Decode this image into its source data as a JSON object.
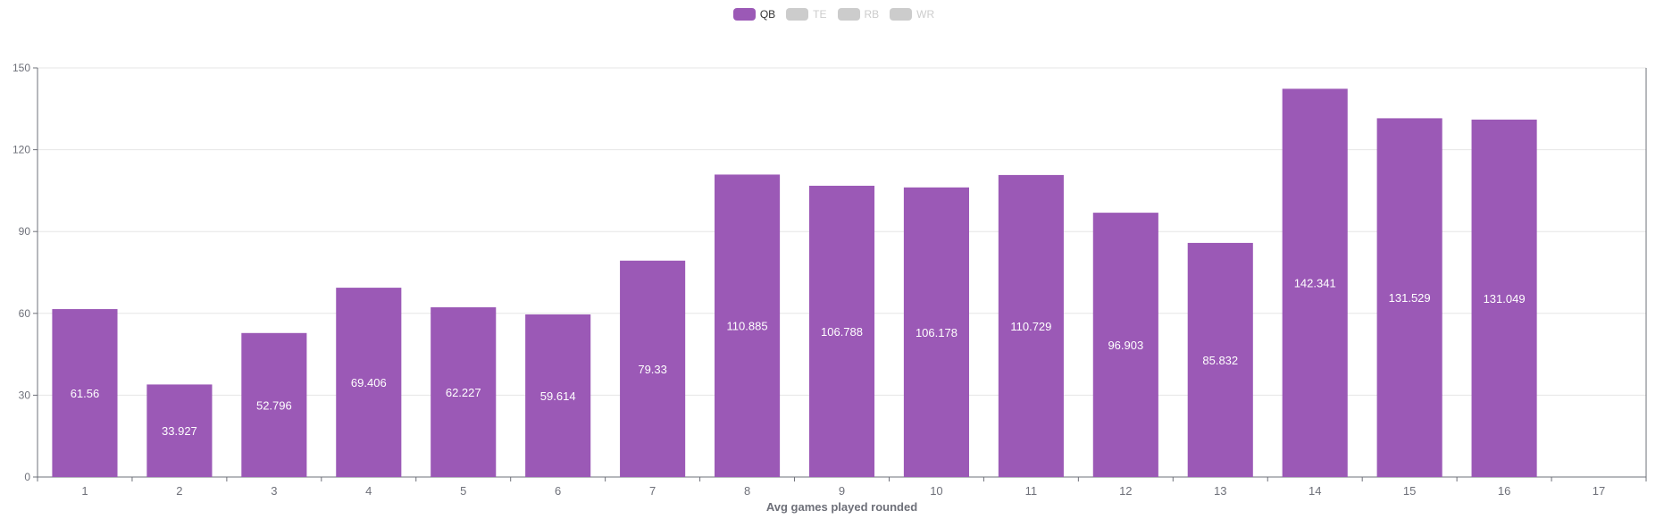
{
  "chart_data": {
    "type": "bar",
    "xlabel": "Avg games played rounded",
    "ylabel": "",
    "ylim": [
      0,
      150
    ],
    "y_ticks": [
      0,
      30,
      60,
      90,
      120,
      150
    ],
    "categories": [
      "1",
      "2",
      "3",
      "4",
      "5",
      "6",
      "7",
      "8",
      "9",
      "10",
      "11",
      "12",
      "13",
      "14",
      "15",
      "16",
      "17"
    ],
    "legend": [
      {
        "name": "QB",
        "active": true,
        "color": "#9b59b6"
      },
      {
        "name": "TE",
        "active": false,
        "color": "#cccccc"
      },
      {
        "name": "RB",
        "active": false,
        "color": "#cccccc"
      },
      {
        "name": "WR",
        "active": false,
        "color": "#cccccc"
      }
    ],
    "series": [
      {
        "name": "QB",
        "color": "#9b59b6",
        "values": [
          61.56,
          33.927,
          52.796,
          69.406,
          62.227,
          59.614,
          79.33,
          110.885,
          106.788,
          106.178,
          110.729,
          96.903,
          85.832,
          142.341,
          131.529,
          131.049,
          null
        ],
        "labels": [
          "61.56",
          "33.927",
          "52.796",
          "69.406",
          "62.227",
          "59.614",
          "79.33",
          "110.885",
          "106.788",
          "106.178",
          "110.729",
          "96.903",
          "85.832",
          "142.341",
          "131.529",
          "131.049",
          ""
        ]
      }
    ],
    "grid": true,
    "legend_position": "top-center"
  }
}
